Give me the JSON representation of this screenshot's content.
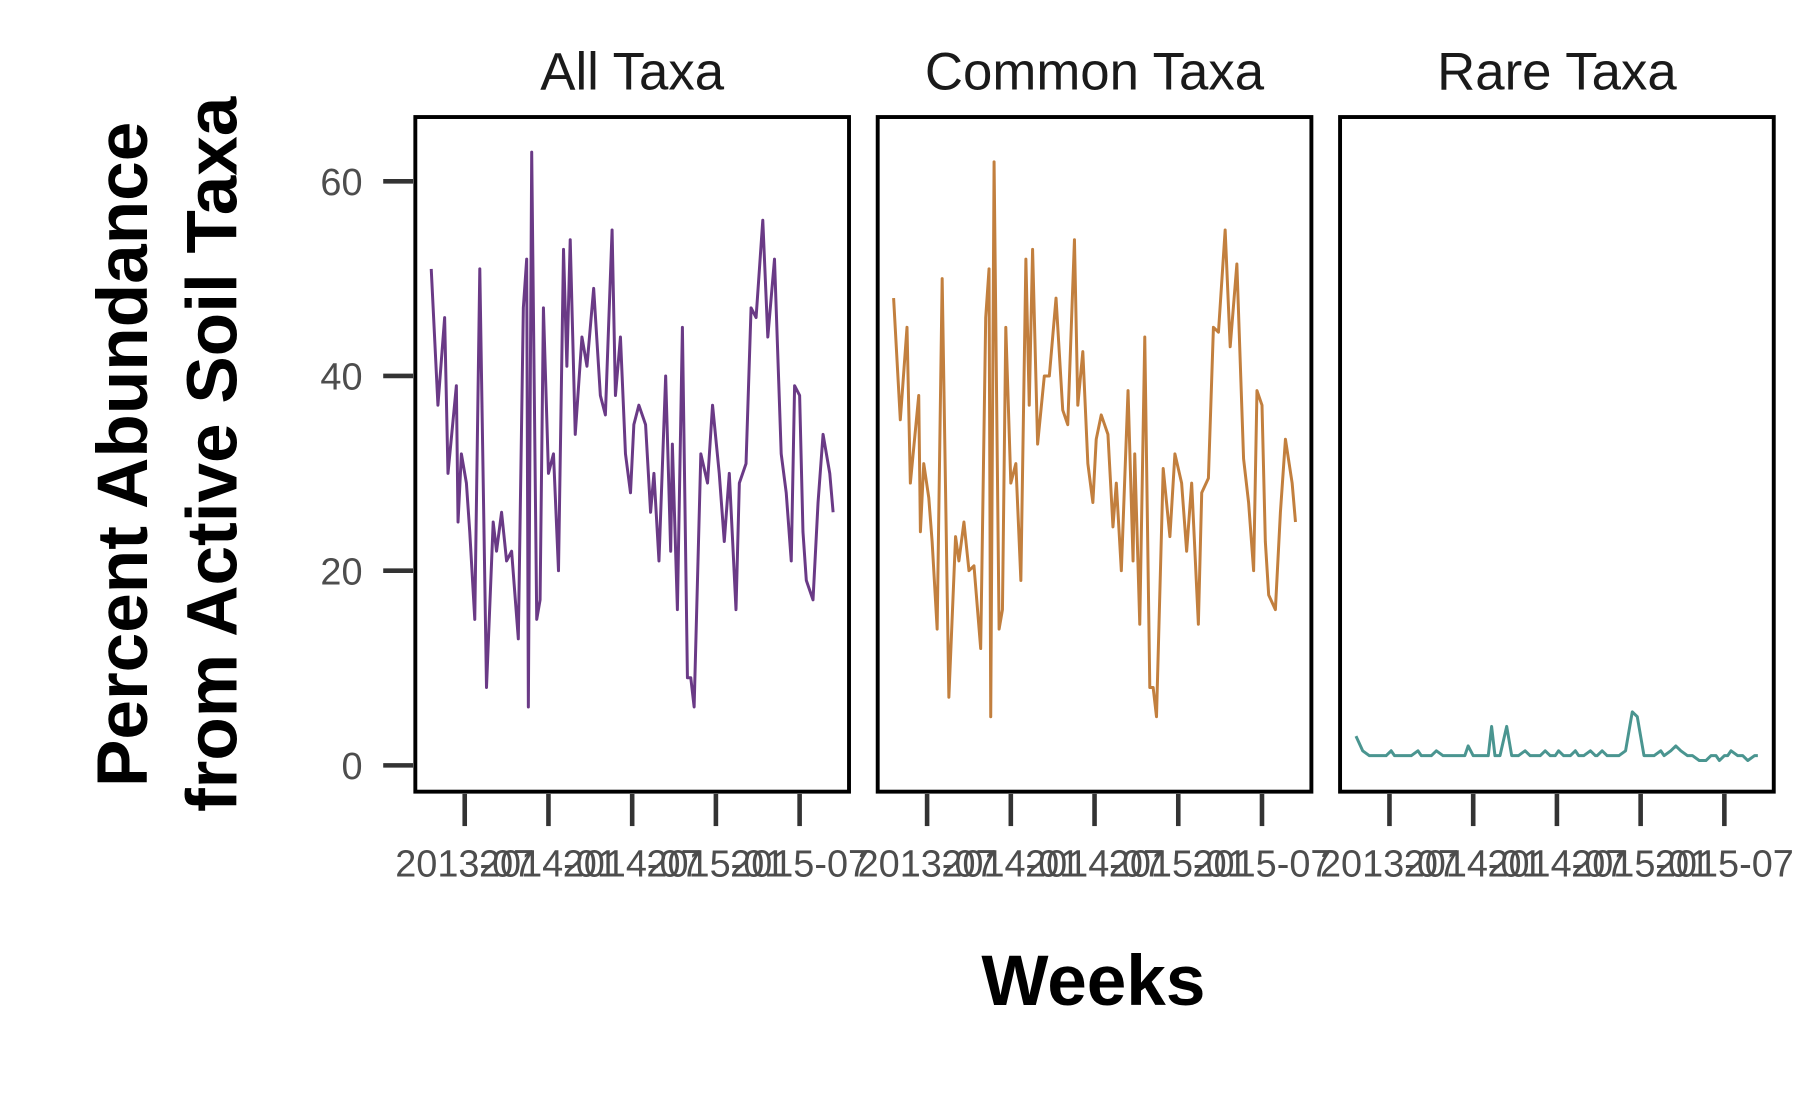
{
  "x_label": "Weeks",
  "y_label": [
    "Percent Abundance",
    "from Active Soil Taxa"
  ],
  "chart_data": [
    {
      "type": "line",
      "title": "All Taxa",
      "color": "#6a3a86",
      "x": [
        2013.3,
        2013.34,
        2013.38,
        2013.4,
        2013.45,
        2013.46,
        2013.48,
        2013.51,
        2013.53,
        2013.56,
        2013.59,
        2013.63,
        2013.67,
        2013.69,
        2013.72,
        2013.75,
        2013.78,
        2013.82,
        2013.85,
        2013.87,
        2013.88,
        2013.9,
        2013.93,
        2013.95,
        2013.97,
        2014.0,
        2014.03,
        2014.06,
        2014.09,
        2014.11,
        2014.13,
        2014.16,
        2014.2,
        2014.23,
        2014.27,
        2014.31,
        2014.34,
        2014.38,
        2014.4,
        2014.43,
        2014.46,
        2014.49,
        2014.51,
        2014.54,
        2014.58,
        2014.61,
        2014.63,
        2014.66,
        2014.7,
        2014.73,
        2014.74,
        2014.77,
        2014.8,
        2014.83,
        2014.85,
        2014.87,
        2014.91,
        2014.95,
        2014.98,
        2015.02,
        2015.05,
        2015.08,
        2015.12,
        2015.14,
        2015.18,
        2015.21,
        2015.24,
        2015.28,
        2015.31,
        2015.35,
        2015.39,
        2015.42,
        2015.45,
        2015.47,
        2015.5,
        2015.52,
        2015.54,
        2015.58,
        2015.61,
        2015.64,
        2015.68,
        2015.7
      ],
      "values": [
        51,
        37,
        46,
        30,
        39,
        25,
        32,
        29,
        24,
        15,
        51,
        8,
        25,
        22,
        26,
        21,
        22,
        13,
        47,
        52,
        6,
        63,
        15,
        17,
        47,
        30,
        32,
        20,
        53,
        41,
        54,
        34,
        44,
        41,
        49,
        38,
        36,
        55,
        38,
        44,
        32,
        28,
        35,
        37,
        35,
        26,
        30,
        21,
        40,
        22,
        33,
        16,
        45,
        9,
        9,
        6,
        32,
        29,
        37,
        30,
        23,
        30,
        16,
        29,
        31,
        47,
        46,
        56,
        44,
        52,
        32,
        28,
        21,
        39,
        38,
        24,
        19,
        17,
        27,
        34,
        30,
        26
      ],
      "xlim": [
        2013.205,
        2015.795
      ],
      "ylim": [
        -2.7,
        66.6
      ],
      "xticks": [
        {
          "value": 2013.5,
          "label": "2013-07"
        },
        {
          "value": 2014.0,
          "label": "2014-01"
        },
        {
          "value": 2014.5,
          "label": "2014-07"
        },
        {
          "value": 2015.0,
          "label": "2015-01"
        },
        {
          "value": 2015.5,
          "label": "2015-07"
        }
      ],
      "yticks": [
        0,
        20,
        40,
        60
      ]
    },
    {
      "type": "line",
      "title": "Common Taxa",
      "color": "#c27f3e",
      "x": [
        2013.3,
        2013.34,
        2013.38,
        2013.4,
        2013.45,
        2013.46,
        2013.48,
        2013.51,
        2013.53,
        2013.56,
        2013.59,
        2013.63,
        2013.67,
        2013.69,
        2013.72,
        2013.75,
        2013.78,
        2013.82,
        2013.85,
        2013.87,
        2013.88,
        2013.9,
        2013.93,
        2013.95,
        2013.97,
        2014.0,
        2014.03,
        2014.06,
        2014.09,
        2014.11,
        2014.13,
        2014.16,
        2014.2,
        2014.23,
        2014.27,
        2014.31,
        2014.34,
        2014.38,
        2014.4,
        2014.43,
        2014.46,
        2014.49,
        2014.51,
        2014.54,
        2014.58,
        2014.61,
        2014.63,
        2014.66,
        2014.7,
        2014.73,
        2014.74,
        2014.77,
        2014.8,
        2014.83,
        2014.85,
        2014.87,
        2014.91,
        2014.95,
        2014.98,
        2015.02,
        2015.05,
        2015.08,
        2015.12,
        2015.14,
        2015.18,
        2015.21,
        2015.24,
        2015.28,
        2015.31,
        2015.35,
        2015.39,
        2015.42,
        2015.45,
        2015.47,
        2015.5,
        2015.52,
        2015.54,
        2015.58,
        2015.61,
        2015.64,
        2015.68,
        2015.7
      ],
      "values": [
        48,
        35.5,
        45,
        29,
        38,
        24,
        31,
        27.5,
        23,
        14,
        50,
        7,
        23.5,
        21,
        25,
        20,
        20.5,
        12,
        46,
        51,
        5,
        62,
        14,
        16,
        45,
        29,
        31,
        19,
        52,
        37,
        53,
        33,
        40,
        40,
        48,
        36.5,
        35,
        54,
        37,
        42.5,
        31,
        27,
        33.5,
        36,
        34,
        24.5,
        29,
        20,
        38.5,
        21,
        32,
        14.5,
        44,
        8,
        8,
        5,
        30.5,
        23.5,
        32,
        29,
        22,
        29,
        14.5,
        28,
        29.5,
        45,
        44.5,
        55,
        43,
        51.5,
        31.5,
        27,
        20,
        38.5,
        37,
        23,
        17.5,
        16,
        26,
        33.5,
        29,
        25
      ],
      "xlim": [
        2013.205,
        2015.795
      ],
      "ylim": [
        -2.7,
        66.6
      ],
      "xticks": [
        {
          "value": 2013.5,
          "label": "2013-07"
        },
        {
          "value": 2014.0,
          "label": "2014-01"
        },
        {
          "value": 2014.5,
          "label": "2014-07"
        },
        {
          "value": 2015.0,
          "label": "2015-01"
        },
        {
          "value": 2015.5,
          "label": "2015-07"
        }
      ]
    },
    {
      "type": "line",
      "title": "Rare Taxa",
      "color": "#4a9590",
      "x": [
        2013.3,
        2013.34,
        2013.38,
        2013.4,
        2013.45,
        2013.46,
        2013.48,
        2013.51,
        2013.53,
        2013.56,
        2013.59,
        2013.63,
        2013.67,
        2013.69,
        2013.72,
        2013.75,
        2013.78,
        2013.82,
        2013.85,
        2013.87,
        2013.88,
        2013.9,
        2013.93,
        2013.95,
        2013.97,
        2014.0,
        2014.03,
        2014.06,
        2014.09,
        2014.11,
        2014.13,
        2014.16,
        2014.2,
        2014.23,
        2014.27,
        2014.31,
        2014.34,
        2014.38,
        2014.4,
        2014.43,
        2014.46,
        2014.49,
        2014.51,
        2014.54,
        2014.58,
        2014.61,
        2014.63,
        2014.66,
        2014.7,
        2014.73,
        2014.74,
        2014.77,
        2014.8,
        2014.83,
        2014.85,
        2014.87,
        2014.91,
        2014.95,
        2014.98,
        2015.02,
        2015.05,
        2015.08,
        2015.12,
        2015.14,
        2015.18,
        2015.21,
        2015.24,
        2015.28,
        2015.31,
        2015.35,
        2015.39,
        2015.42,
        2015.45,
        2015.47,
        2015.5,
        2015.52,
        2015.54,
        2015.58,
        2015.61,
        2015.64,
        2015.68,
        2015.7
      ],
      "values": [
        3,
        1.5,
        1,
        1,
        1,
        1,
        1,
        1.5,
        1,
        1,
        1,
        1,
        1.5,
        1,
        1,
        1,
        1.5,
        1,
        1,
        1,
        1,
        1,
        1,
        1,
        2,
        1,
        1,
        1,
        1,
        4,
        1,
        1,
        4,
        1,
        1,
        1.5,
        1,
        1,
        1,
        1.5,
        1,
        1,
        1.5,
        1,
        1,
        1.5,
        1,
        1,
        1.5,
        1,
        1,
        1.5,
        1,
        1,
        1,
        1,
        1.5,
        5.5,
        5,
        1,
        1,
        1,
        1.5,
        1,
        1.5,
        2,
        1.5,
        1,
        1,
        0.5,
        0.5,
        1,
        1,
        0.5,
        1,
        1,
        1.5,
        1,
        1,
        0.5,
        1,
        1
      ],
      "xlim": [
        2013.205,
        2015.795
      ],
      "ylim": [
        -2.7,
        66.6
      ],
      "xticks": [
        {
          "value": 2013.5,
          "label": "2013-07"
        },
        {
          "value": 2014.0,
          "label": "2014-01"
        },
        {
          "value": 2014.5,
          "label": "2014-07"
        },
        {
          "value": 2015.0,
          "label": "2015-01"
        },
        {
          "value": 2015.5,
          "label": "2015-07"
        }
      ]
    }
  ]
}
